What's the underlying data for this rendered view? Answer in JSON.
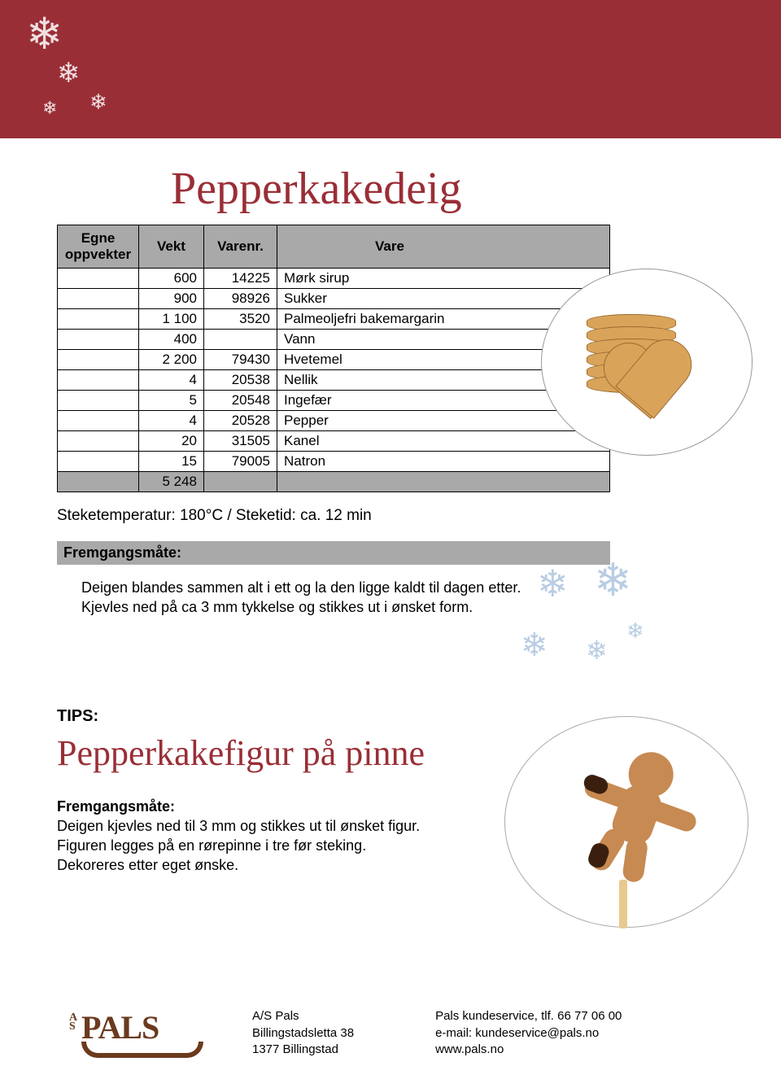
{
  "banner": {
    "color": "#9a2e36"
  },
  "title": "Pepperkakedeig",
  "table": {
    "headers": {
      "egne": "Egne oppvekter",
      "vekt": "Vekt",
      "vnr": "Varenr.",
      "vare": "Vare"
    },
    "rows": [
      {
        "vekt": "600",
        "vnr": "14225",
        "vare": "Mørk sirup"
      },
      {
        "vekt": "900",
        "vnr": "98926",
        "vare": "Sukker"
      },
      {
        "vekt": "1 100",
        "vnr": "3520",
        "vare": "Palmeoljefri bakemargarin"
      },
      {
        "vekt": "400",
        "vnr": "",
        "vare": "Vann"
      },
      {
        "vekt": "2 200",
        "vnr": "79430",
        "vare": "Hvetemel"
      },
      {
        "vekt": "4",
        "vnr": "20538",
        "vare": "Nellik"
      },
      {
        "vekt": "5",
        "vnr": "20548",
        "vare": "Ingefær"
      },
      {
        "vekt": "4",
        "vnr": "20528",
        "vare": "Pepper"
      },
      {
        "vekt": "20",
        "vnr": "31505",
        "vare": "Kanel"
      },
      {
        "vekt": "15",
        "vnr": "79005",
        "vare": "Natron"
      }
    ],
    "total_vekt": "5 248"
  },
  "bake_info": "Steketemperatur: 180°C / Steketid: ca. 12 min",
  "fremgang_label": "Fremgangsmåte:",
  "fremgang_body1": "Deigen blandes sammen alt i ett og la den ligge kaldt til dagen etter.",
  "fremgang_body2": "Kjevles ned på ca 3 mm tykkelse og stikkes ut i ønsket form.",
  "tips_label": "TIPS:",
  "subtitle": "Pepperkakefigur på pinne",
  "sub_fm_label": "Fremgangsmåte:",
  "sub_line1": "Deigen kjevles ned til 3 mm og stikkes ut til ønsket figur.",
  "sub_line2": "Figuren legges på en rørepinne i tre før steking.",
  "sub_line3": "Dekoreres etter eget ønske.",
  "footer": {
    "logo_text": "PALS",
    "addr1": "A/S Pals",
    "addr2": "Billingstadsletta 38",
    "addr3": "1377 Billingstad",
    "c1": "Pals kundeservice, tlf. 66 77 06 00",
    "c2": "e-mail: kundeservice@pals.no",
    "c3": "www.pals.no"
  }
}
